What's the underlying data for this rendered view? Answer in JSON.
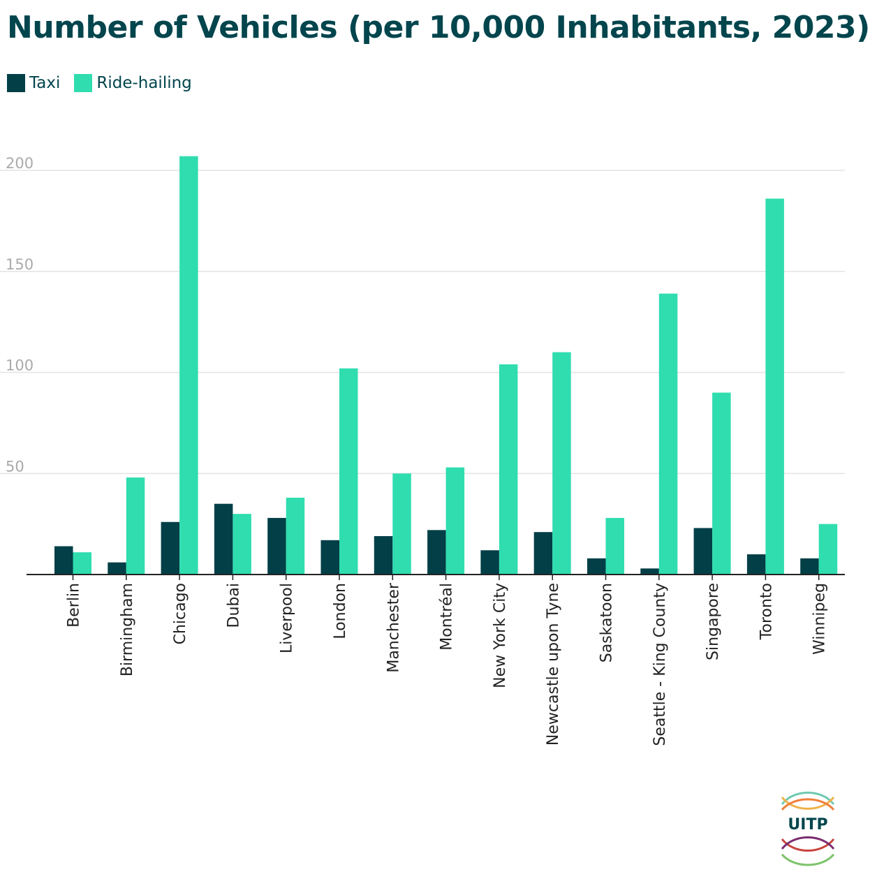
{
  "colors": {
    "taxi": "#023f47",
    "ridehailing": "#2fddaf",
    "text": "#02454d",
    "grid": "#e3e3e3",
    "axis": "#222222",
    "tick": "#aaaaaa"
  },
  "logo": {
    "text": "UITP"
  },
  "chart_data": {
    "type": "bar",
    "title": "Number of Vehicles (per 10,000 Inhabitants, 2023)",
    "xlabel": "",
    "ylabel": "",
    "ylim": [
      0,
      200
    ],
    "yticks": [
      "50",
      "100",
      "150",
      "200"
    ],
    "grid": true,
    "legend_position": "top-left",
    "categories": [
      "Berlin",
      "Birmingham",
      "Chicago",
      "Dubai",
      "Liverpool",
      "London",
      "Manchester",
      "Montréal",
      "New York City",
      "Newcastle upon Tyne",
      "Saskatoon",
      "Seattle - King County",
      "Singapore",
      "Toronto",
      "Winnipeg"
    ],
    "series": [
      {
        "name": "Taxi",
        "values": [
          14,
          6,
          26,
          35,
          28,
          17,
          19,
          22,
          12,
          21,
          8,
          3,
          23,
          10,
          8
        ]
      },
      {
        "name": "Ride-hailing",
        "values": [
          11,
          48,
          207,
          30,
          38,
          102,
          50,
          53,
          104,
          110,
          28,
          139,
          90,
          186,
          25
        ]
      }
    ]
  }
}
